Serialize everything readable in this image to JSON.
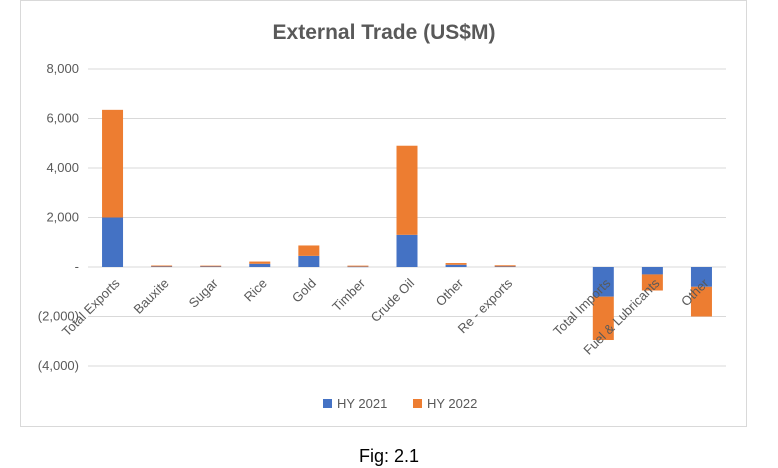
{
  "caption": "Fig: 2.1",
  "chart_data": {
    "type": "bar",
    "stacked": true,
    "title": "External Trade (US$M)",
    "xlabel": "",
    "ylabel": "",
    "ylim": [
      -4000,
      8000
    ],
    "y_ticks": [
      8000,
      6000,
      4000,
      2000,
      0,
      -2000,
      -4000
    ],
    "y_tick_labels": [
      "8,000",
      "6,000",
      "4,000",
      "2,000",
      "-",
      "(2,000)",
      "(4,000)"
    ],
    "gridlines": true,
    "legend_position": "bottom",
    "categories": [
      "Total Exports",
      "Bauxite",
      "Sugar",
      "Rice",
      "Gold",
      "Timber",
      "Crude Oil",
      "Other",
      "Re - exports",
      "",
      "Total Imports",
      "Fuel & Lubricants",
      "Other"
    ],
    "series": [
      {
        "name": "HY 2021",
        "color": "#4472c4",
        "values": [
          2000,
          20,
          20,
          130,
          450,
          15,
          1300,
          90,
          20,
          0,
          -1200,
          -300,
          -800
        ]
      },
      {
        "name": "HY 2022",
        "color": "#ed7d31",
        "values": [
          4350,
          40,
          35,
          90,
          420,
          40,
          3600,
          70,
          50,
          0,
          -1750,
          -650,
          -1200
        ]
      }
    ]
  }
}
